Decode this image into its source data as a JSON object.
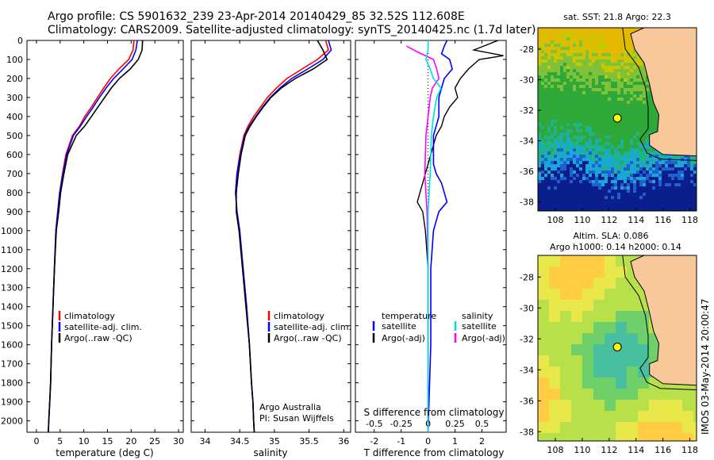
{
  "titles": {
    "line1": "Argo profile: CS 5901632_239 23-Apr-2014 20140429_85 32.52S 112.608E",
    "line2": "Climatology: CARS2009. Satellite-adjusted climatology: synTS_20140425.nc (1.7d later)"
  },
  "colors": {
    "clim": "#ff0000",
    "sat": "#0000ff",
    "argo": "#000000",
    "sat_s": "#00dddd",
    "argo_s": "#ff00ff",
    "land": "#f9c89a"
  },
  "depth_ticks": [
    "0",
    "100",
    "200",
    "300",
    "400",
    "500",
    "600",
    "700",
    "800",
    "900",
    "1000",
    "1100",
    "1200",
    "1300",
    "1400",
    "1500",
    "1600",
    "1700",
    "1800",
    "1900",
    "2000"
  ],
  "temp_panel": {
    "xlabel": "temperature (deg C)",
    "xticks": [
      "0",
      "5",
      "10",
      "15",
      "20",
      "25",
      "30"
    ],
    "legend": [
      "climatology",
      "satellite-adj. clim.",
      "Argo(..raw -QC)"
    ]
  },
  "sal_panel": {
    "xlabel": "salinity",
    "xticks": [
      "34",
      "34.5",
      "35",
      "35.5",
      "36"
    ],
    "legend": [
      "climatology",
      "satellite-adj. clim.",
      "Argo(..raw -QC)"
    ],
    "note1": "Argo Australia",
    "note2": "PI: Susan Wijffels"
  },
  "diff_panel": {
    "xlabel": "T difference from climatology",
    "toplabel": "S difference from climatology",
    "xticks": [
      "-2",
      "-1",
      "0",
      "1",
      "2"
    ],
    "sticks": [
      "-0.5",
      "-0.25",
      "0",
      "0.25",
      "0.5"
    ],
    "legend_t_head": "temperature",
    "legend_t": [
      "satellite",
      "Argo(-adj)"
    ],
    "legend_s_head": "salinity",
    "legend_s": [
      "satellite",
      "Argo(-adj)"
    ]
  },
  "map1": {
    "title": "sat. SST: 21.8  Argo: 22.3",
    "yticks": [
      "-28",
      "-30",
      "-32",
      "-34",
      "-36",
      "-38"
    ],
    "xticks": [
      "108",
      "110",
      "112",
      "114",
      "116",
      "118"
    ]
  },
  "map2": {
    "title1": "Altim. SLA: 0.086",
    "title2": "Argo h1000: 0.14 h2000: 0.14",
    "yticks": [
      "-28",
      "-30",
      "-32",
      "-34",
      "-36",
      "-38"
    ],
    "xticks": [
      "108",
      "110",
      "112",
      "114",
      "116",
      "118"
    ]
  },
  "side_text": "IMOS 03-May-2014 20:00:47",
  "chart_data": [
    {
      "type": "line",
      "title": "",
      "xlabel": "temperature (deg C)",
      "ylabel": "",
      "xlim": [
        -2,
        31
      ],
      "ylim": [
        2060,
        0
      ],
      "series": [
        {
          "name": "climatology",
          "x": [
            20.6,
            20.4,
            19.5,
            17.4,
            15.6,
            14.2,
            12.9,
            11.6,
            10.2,
            9.1,
            7.6,
            6.2,
            5.5,
            4.9,
            4.5,
            4.1,
            3.8,
            3.5,
            3.2,
            3.0,
            2.8,
            2.6,
            2.5
          ],
          "y": [
            0,
            50,
            100,
            150,
            200,
            250,
            300,
            350,
            400,
            450,
            500,
            600,
            700,
            800,
            900,
            1000,
            1200,
            1400,
            1600,
            1800,
            1900,
            2000,
            2060
          ]
        },
        {
          "name": "satellite-adj. clim.",
          "x": [
            21.3,
            21.0,
            20.2,
            18.3,
            16.3,
            14.7,
            13.3,
            12.0,
            10.6,
            9.3,
            7.8,
            6.4,
            5.6,
            4.9,
            4.5,
            4.1,
            3.8,
            3.5,
            3.2,
            3.0,
            2.8,
            2.6,
            2.5
          ],
          "y": [
            0,
            50,
            100,
            150,
            200,
            250,
            300,
            350,
            400,
            450,
            500,
            600,
            700,
            800,
            900,
            1000,
            1200,
            1400,
            1600,
            1800,
            1900,
            2000,
            2060
          ]
        },
        {
          "name": "Argo(..raw -QC)",
          "x": [
            22.4,
            22.3,
            21.5,
            19.8,
            17.5,
            15.8,
            14.4,
            13.0,
            11.6,
            10.2,
            8.4,
            6.6,
            5.8,
            5.1,
            4.7,
            4.2,
            3.8,
            3.5,
            3.2,
            3.0,
            2.8,
            2.6,
            2.5
          ],
          "y": [
            0,
            50,
            100,
            150,
            200,
            250,
            300,
            350,
            400,
            450,
            500,
            600,
            700,
            800,
            900,
            1000,
            1200,
            1400,
            1600,
            1800,
            1900,
            2000,
            2060
          ]
        }
      ]
    },
    {
      "type": "line",
      "title": "",
      "xlabel": "salinity",
      "ylabel": "",
      "xlim": [
        33.8,
        36.1
      ],
      "ylim": [
        2060,
        0
      ],
      "series": [
        {
          "name": "climatology",
          "x": [
            35.74,
            35.78,
            35.62,
            35.4,
            35.18,
            35.03,
            34.9,
            34.8,
            34.7,
            34.62,
            34.56,
            34.5,
            34.46,
            34.44,
            34.46,
            34.5,
            34.55,
            34.6,
            34.64,
            34.67,
            34.69,
            34.7,
            34.71
          ],
          "y": [
            0,
            50,
            100,
            150,
            200,
            250,
            300,
            350,
            400,
            450,
            500,
            600,
            700,
            800,
            900,
            1000,
            1200,
            1400,
            1600,
            1800,
            1900,
            2000,
            2060
          ]
        },
        {
          "name": "satellite-adj. clim.",
          "x": [
            35.78,
            35.82,
            35.7,
            35.48,
            35.25,
            35.08,
            34.94,
            34.83,
            34.73,
            34.64,
            34.57,
            34.51,
            34.46,
            34.44,
            34.46,
            34.5,
            34.55,
            34.6,
            34.64,
            34.67,
            34.69,
            34.7,
            34.71
          ],
          "y": [
            0,
            50,
            100,
            150,
            200,
            250,
            300,
            350,
            400,
            450,
            500,
            600,
            700,
            800,
            900,
            1000,
            1200,
            1400,
            1600,
            1800,
            1900,
            2000,
            2060
          ]
        },
        {
          "name": "Argo(..raw -QC)",
          "x": [
            35.62,
            35.7,
            35.76,
            35.56,
            35.3,
            35.1,
            34.95,
            34.84,
            34.74,
            34.65,
            34.58,
            34.52,
            34.48,
            34.45,
            34.45,
            34.49,
            34.54,
            34.59,
            34.64,
            34.67,
            34.69,
            34.7,
            34.71
          ],
          "y": [
            0,
            50,
            100,
            150,
            200,
            250,
            300,
            350,
            400,
            450,
            500,
            600,
            700,
            800,
            900,
            1000,
            1200,
            1400,
            1600,
            1800,
            1900,
            2000,
            2060
          ]
        }
      ]
    },
    {
      "type": "line",
      "title": "",
      "xlabel": "T difference from climatology",
      "ylabel": "",
      "xlim": [
        -2.7,
        2.9
      ],
      "ylim": [
        2060,
        0
      ],
      "series": [
        {
          "name": "satellite",
          "x": [
            0.7,
            0.6,
            0.5,
            0.8,
            0.9,
            0.6,
            0.5,
            0.4,
            0.4,
            0.3,
            0.2,
            0.2,
            0.2,
            0.3,
            0.5,
            0.6,
            0.7,
            0.4,
            0.2,
            0.1,
            0.1,
            0.0
          ],
          "y": [
            0,
            30,
            70,
            100,
            150,
            200,
            250,
            300,
            400,
            450,
            500,
            600,
            650,
            700,
            750,
            800,
            850,
            900,
            1000,
            1200,
            1600,
            2060
          ]
        },
        {
          "name": "Argo(-adj)",
          "x": [
            2.6,
            1.7,
            2.8,
            1.9,
            1.5,
            1.2,
            1.0,
            1.1,
            0.8,
            0.6,
            0.5,
            0.3,
            0.2,
            0.1,
            -0.1,
            -0.3,
            -0.4,
            -0.2,
            -0.1,
            0.0,
            0.0
          ],
          "y": [
            0,
            50,
            80,
            100,
            150,
            200,
            250,
            300,
            350,
            400,
            450,
            500,
            550,
            600,
            700,
            800,
            850,
            900,
            1000,
            1200,
            2060
          ]
        }
      ]
    },
    {
      "type": "line",
      "title": "",
      "xlabel": "S difference from climatology",
      "ylabel": "",
      "xlim": [
        -0.675,
        0.725
      ],
      "ylim": [
        2060,
        0
      ],
      "series": [
        {
          "name": "satellite",
          "x": [
            0.0,
            0.0,
            -0.02,
            0.02,
            0.05,
            0.12,
            0.08,
            0.05,
            0.03,
            0.02,
            0.0,
            0.0,
            0.0
          ],
          "y": [
            0,
            50,
            100,
            150,
            200,
            250,
            300,
            400,
            500,
            700,
            900,
            1200,
            2060
          ]
        },
        {
          "name": "Argo(-adj)",
          "x": [
            -0.2,
            -0.1,
            0.05,
            0.08,
            0.1,
            0.04,
            0.02,
            0.0,
            -0.02,
            -0.03,
            -0.01,
            0.0,
            0.0
          ],
          "y": [
            30,
            60,
            100,
            150,
            200,
            250,
            300,
            400,
            500,
            700,
            900,
            1200,
            2060
          ]
        }
      ]
    },
    {
      "type": "heatmap",
      "title": "sat. SST: 21.8  Argo: 22.3",
      "xlabel": "",
      "ylabel": "",
      "xlim": [
        106.7,
        118.5
      ],
      "ylim": [
        -38.6,
        -26.6
      ],
      "argo_position": [
        112.608,
        -32.52
      ]
    },
    {
      "type": "heatmap",
      "title": "Altim. SLA: 0.086",
      "xlabel": "",
      "ylabel": "",
      "xlim": [
        106.7,
        118.5
      ],
      "ylim": [
        -38.6,
        -26.6
      ],
      "argo_position": [
        112.608,
        -32.52
      ]
    }
  ]
}
